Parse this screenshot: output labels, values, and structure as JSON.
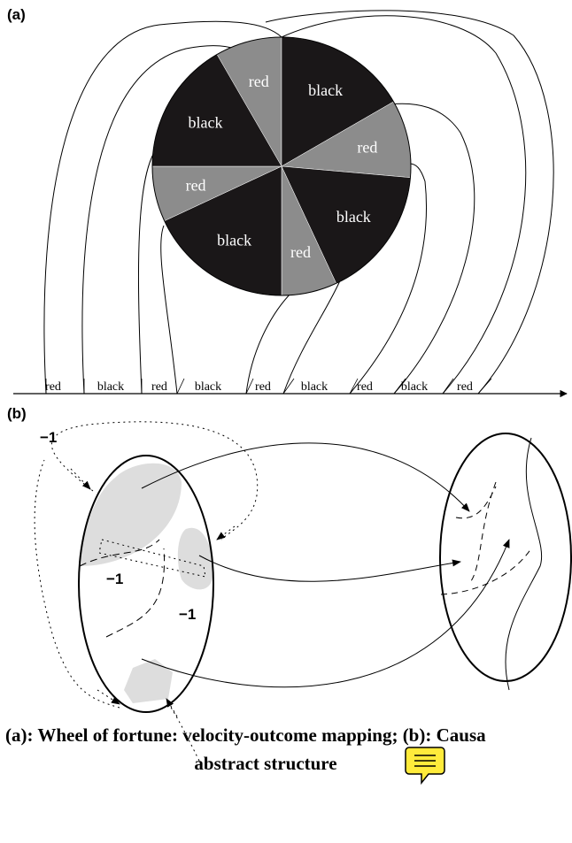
{
  "panel_a": {
    "label": "(a)",
    "wheel_labels": [
      "red",
      "black",
      "red",
      "black",
      "red",
      "black",
      "red",
      "black"
    ],
    "axis_labels": [
      "red",
      "black",
      "red",
      "black",
      "red",
      "black",
      "red",
      "black",
      "red"
    ]
  },
  "panel_b": {
    "label": "(b)",
    "annotations": [
      "−1",
      "−1",
      "−1"
    ]
  },
  "caption": {
    "lines": [
      "(a): Wheel of fortune: velocity-outcome mapping; (b): Causa",
      "abstract structure"
    ]
  }
}
